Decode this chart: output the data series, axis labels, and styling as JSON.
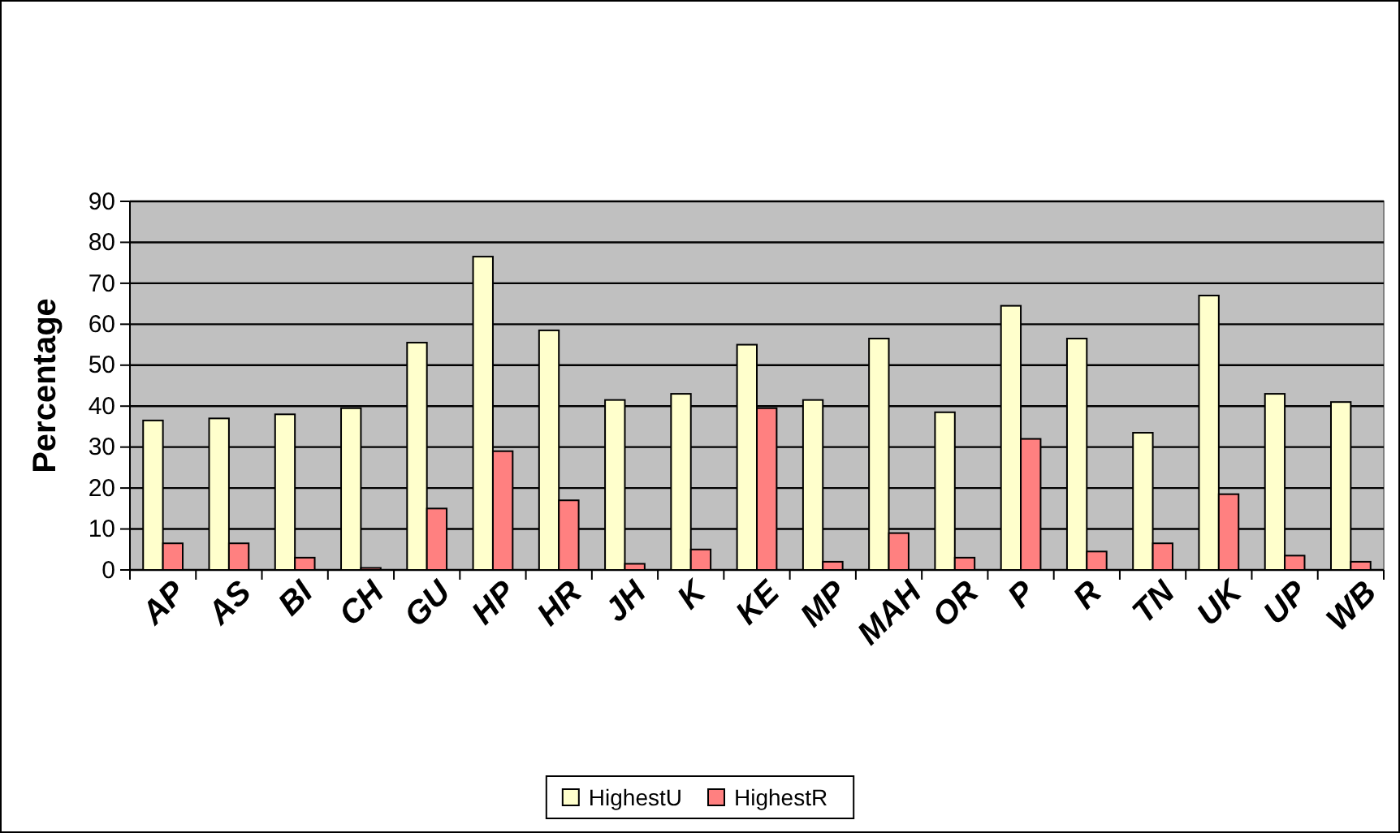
{
  "chart_data": {
    "type": "bar",
    "ylabel": "Percentage",
    "categories": [
      "AP",
      "AS",
      "BI",
      "CH",
      "GU",
      "HP",
      "HR",
      "JH",
      "K",
      "KE",
      "MP",
      "MAH",
      "OR",
      "P",
      "R",
      "TN",
      "UK",
      "UP",
      "WB"
    ],
    "series": [
      {
        "name": "HighestU",
        "color": "#ffffcc",
        "values": [
          36.5,
          37,
          38,
          39.5,
          55.5,
          76.5,
          58.5,
          41.5,
          43,
          55,
          41.5,
          56.5,
          38.5,
          64.5,
          56.5,
          33.5,
          67,
          43,
          41
        ]
      },
      {
        "name": "HighestR",
        "color": "#ff8080",
        "values": [
          6.5,
          6.5,
          3,
          0.5,
          15,
          29,
          17,
          1.5,
          5,
          39.5,
          2,
          9,
          3,
          32,
          4.5,
          6.5,
          18.5,
          3.5,
          2
        ]
      }
    ],
    "ylim": [
      0,
      90
    ],
    "yticks": [
      0,
      10,
      20,
      30,
      40,
      50,
      60,
      70,
      80,
      90
    ],
    "grid": "y",
    "legend": "bottom"
  }
}
